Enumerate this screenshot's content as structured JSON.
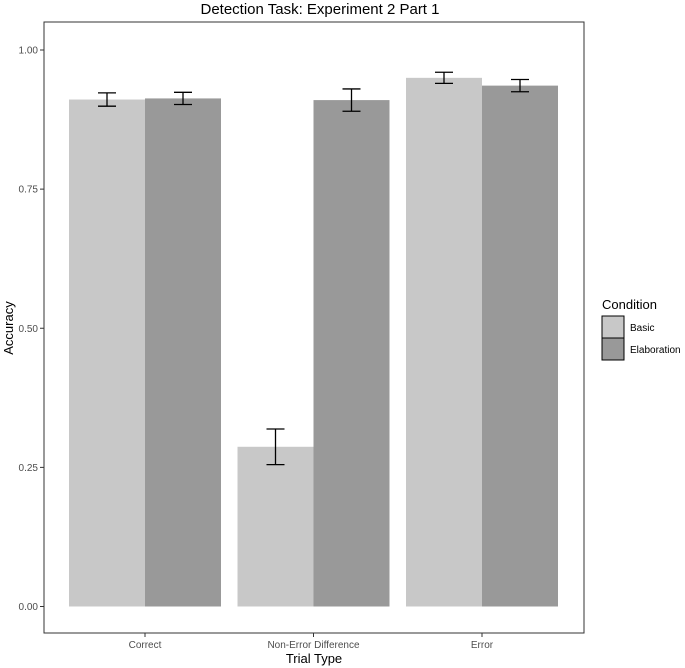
{
  "chart_data": {
    "type": "bar",
    "title": "Detection Task: Experiment 2 Part 1",
    "xlabel": "Trial Type",
    "ylabel": "Accuracy",
    "categories": [
      "Correct",
      "Non-Error Difference",
      "Error"
    ],
    "ylim": [
      0,
      1.0
    ],
    "yticks": [
      0.0,
      0.25,
      0.5,
      0.75,
      1.0
    ],
    "ytick_labels": [
      "0.00",
      "0.25",
      "0.50",
      "0.75",
      "1.00"
    ],
    "grid": false,
    "legend": {
      "title": "Condition",
      "position": "right"
    },
    "series": [
      {
        "name": "Basic",
        "color": "#c8c8c8",
        "values": [
          0.911,
          0.287,
          0.95
        ],
        "error_low": [
          0.899,
          0.255,
          0.94
        ],
        "error_high": [
          0.923,
          0.319,
          0.96
        ]
      },
      {
        "name": "Elaboration",
        "color": "#999999",
        "values": [
          0.913,
          0.91,
          0.936
        ],
        "error_low": [
          0.902,
          0.89,
          0.925
        ],
        "error_high": [
          0.924,
          0.93,
          0.947
        ]
      }
    ]
  }
}
